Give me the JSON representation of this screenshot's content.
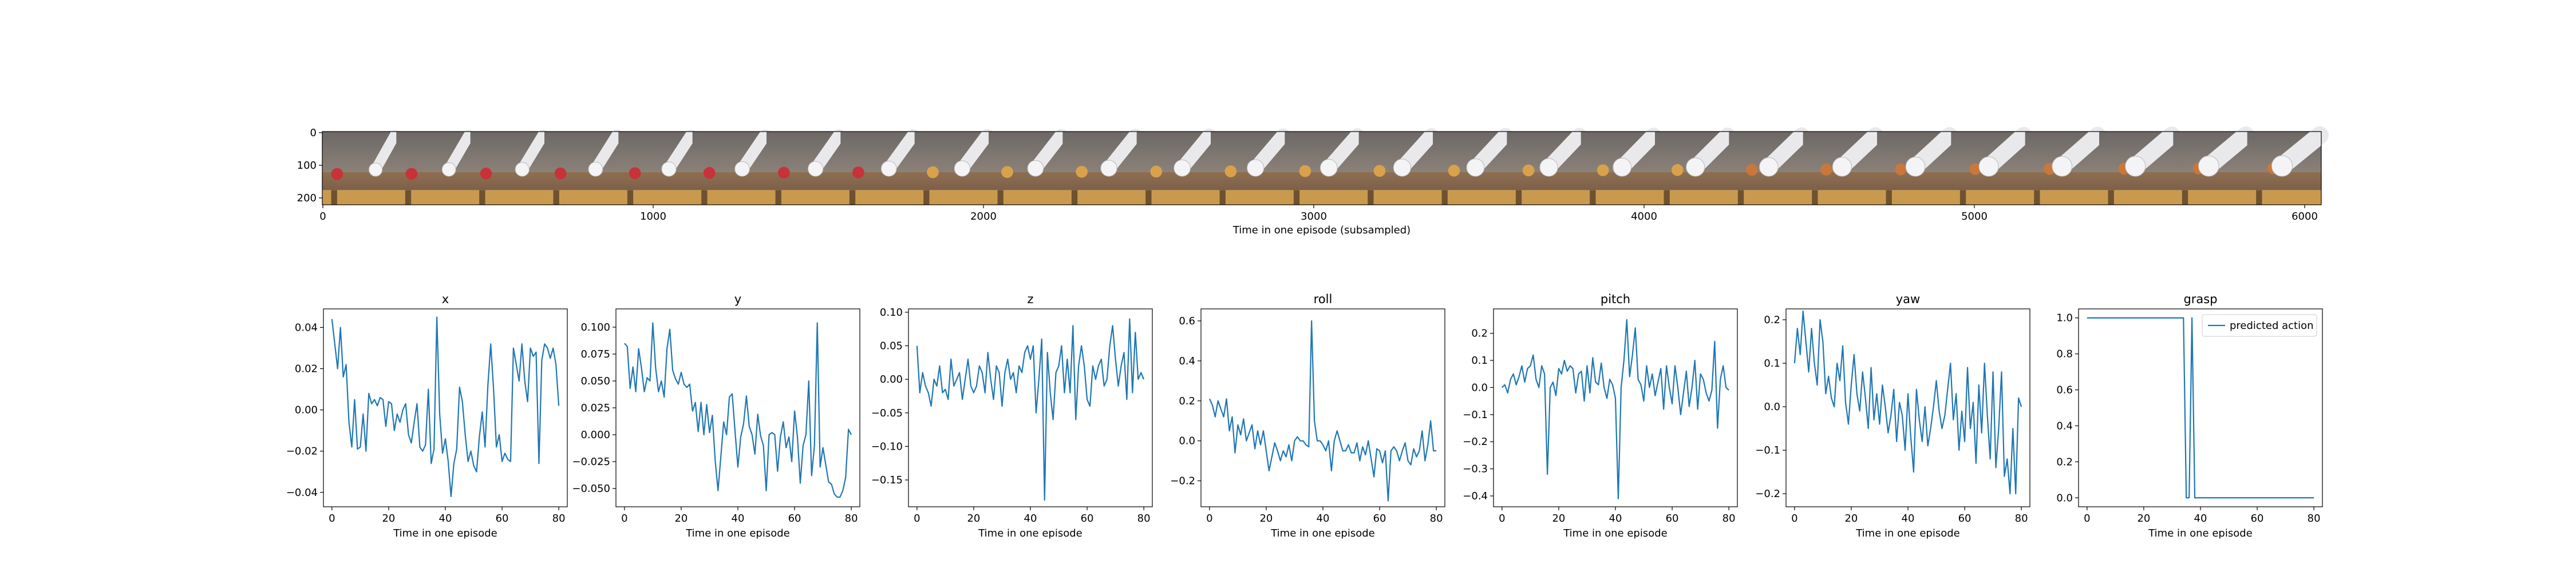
{
  "colors": {
    "line": "#1f77b4",
    "axis": "#000000",
    "legend_border": "#cccccc"
  },
  "strip": {
    "xlabel": "Time in one episode (subsampled)",
    "xticks": [
      "0",
      "1000",
      "2000",
      "3000",
      "4000",
      "5000",
      "6000"
    ],
    "yticks": [
      "0",
      "100",
      "200"
    ],
    "frame_count": 27
  },
  "chart_data": [
    {
      "type": "line",
      "title": "x",
      "xlabel": "Time in one episode",
      "ylabel": "",
      "xlim": [
        -3,
        83
      ],
      "ylim": [
        -0.047,
        0.049
      ],
      "xticks": [
        0,
        20,
        40,
        60,
        80
      ],
      "xtick_labels": [
        "0",
        "20",
        "40",
        "60",
        "80"
      ],
      "yticks": [
        -0.04,
        -0.02,
        0.0,
        0.02,
        0.04
      ],
      "ytick_labels": [
        "−0.04",
        "−0.02",
        "0.00",
        "0.02",
        "0.04"
      ],
      "series": [
        {
          "values": [
            0.044,
            0.032,
            0.02,
            0.04,
            0.016,
            0.022,
            -0.006,
            -0.018,
            0.005,
            -0.019,
            -0.018,
            -0.002,
            -0.02,
            0.008,
            0.003,
            0.005,
            0.002,
            0.006,
            0.005,
            -0.008,
            0.004,
            0.003,
            -0.01,
            -0.002,
            -0.006,
            0.0,
            0.003,
            -0.012,
            -0.016,
            -0.006,
            0.003,
            -0.018,
            -0.02,
            -0.017,
            0.01,
            -0.026,
            -0.019,
            0.045,
            -0.002,
            -0.021,
            -0.014,
            -0.025,
            -0.042,
            -0.026,
            -0.019,
            0.011,
            0.004,
            -0.012,
            -0.025,
            -0.02,
            -0.027,
            -0.03,
            -0.013,
            -0.001,
            -0.018,
            0.012,
            0.032,
            0.01,
            -0.018,
            -0.012,
            -0.025,
            -0.021,
            -0.024,
            -0.025,
            0.03,
            0.022,
            0.014,
            0.032,
            0.014,
            0.004,
            0.03,
            0.026,
            0.028,
            -0.026,
            0.024,
            0.032,
            0.03,
            0.025,
            0.03,
            0.022,
            0.002
          ]
        }
      ]
    },
    {
      "type": "line",
      "title": "y",
      "xlabel": "Time in one episode",
      "ylabel": "",
      "xlim": [
        -3,
        83
      ],
      "ylim": [
        -0.067,
        0.117
      ],
      "xticks": [
        0,
        20,
        40,
        60,
        80
      ],
      "xtick_labels": [
        "0",
        "20",
        "40",
        "60",
        "80"
      ],
      "yticks": [
        -0.05,
        -0.025,
        0.0,
        0.025,
        0.05,
        0.075,
        0.1
      ],
      "ytick_labels": [
        "−0.050",
        "−0.025",
        "0.000",
        "0.025",
        "0.050",
        "0.075",
        "0.100"
      ],
      "series": [
        {
          "values": [
            0.085,
            0.082,
            0.043,
            0.063,
            0.04,
            0.08,
            0.062,
            0.04,
            0.053,
            0.05,
            0.104,
            0.062,
            0.04,
            0.05,
            0.035,
            0.08,
            0.098,
            0.06,
            0.052,
            0.047,
            0.058,
            0.047,
            0.044,
            0.047,
            0.022,
            0.03,
            0.003,
            0.03,
            0.0,
            0.028,
            0.002,
            0.018,
            -0.024,
            -0.052,
            -0.02,
            0.012,
            0.0,
            0.035,
            0.038,
            0.003,
            -0.03,
            -0.002,
            0.01,
            0.036,
            0.008,
            0.0,
            -0.018,
            0.019,
            -0.001,
            -0.01,
            -0.052,
            0.0,
            0.002,
            0.0,
            -0.034,
            -0.002,
            0.012,
            -0.012,
            -0.002,
            -0.025,
            0.022,
            -0.002,
            -0.045,
            -0.01,
            0.0,
            0.05,
            -0.038,
            -0.01,
            0.104,
            -0.03,
            -0.012,
            -0.028,
            -0.044,
            -0.046,
            -0.055,
            -0.058,
            -0.058,
            -0.052,
            -0.04,
            0.005,
            0.0
          ]
        }
      ]
    },
    {
      "type": "line",
      "title": "z",
      "xlabel": "Time in one episode",
      "ylabel": "",
      "xlim": [
        -3,
        83
      ],
      "ylim": [
        -0.19,
        0.105
      ],
      "xticks": [
        0,
        20,
        40,
        60,
        80
      ],
      "xtick_labels": [
        "0",
        "20",
        "40",
        "60",
        "80"
      ],
      "yticks": [
        -0.15,
        -0.1,
        -0.05,
        0.0,
        0.05,
        0.1
      ],
      "ytick_labels": [
        "−0.15",
        "−0.10",
        "−0.05",
        "0.00",
        "0.05",
        "0.10"
      ],
      "series": [
        {
          "values": [
            0.05,
            -0.02,
            0.01,
            -0.01,
            -0.02,
            -0.04,
            0.0,
            -0.01,
            0.02,
            -0.02,
            -0.015,
            -0.03,
            0.03,
            -0.01,
            0.0,
            0.01,
            -0.03,
            0.0,
            0.03,
            -0.01,
            -0.02,
            -0.01,
            0.02,
            0.01,
            -0.02,
            0.04,
            0.0,
            -0.03,
            0.02,
            0.01,
            -0.04,
            0.01,
            0.03,
            0.0,
            0.01,
            -0.02,
            0.02,
            0.01,
            0.04,
            0.05,
            0.03,
            0.05,
            -0.05,
            0.0,
            0.06,
            -0.18,
            0.04,
            -0.02,
            -0.06,
            0.01,
            0.02,
            0.05,
            -0.02,
            0.03,
            -0.02,
            0.08,
            -0.06,
            0.02,
            0.05,
            0.02,
            -0.03,
            -0.04,
            0.02,
            0.0,
            0.02,
            0.03,
            -0.01,
            0.0,
            0.05,
            0.08,
            0.03,
            -0.01,
            0.02,
            0.04,
            -0.03,
            0.09,
            -0.02,
            0.07,
            0.0,
            0.01,
            0.0
          ]
        }
      ]
    },
    {
      "type": "line",
      "title": "roll",
      "xlabel": "Time in one episode",
      "ylabel": "",
      "xlim": [
        -3,
        83
      ],
      "ylim": [
        -0.33,
        0.66
      ],
      "xticks": [
        0,
        20,
        40,
        60,
        80
      ],
      "xtick_labels": [
        "0",
        "20",
        "40",
        "60",
        "80"
      ],
      "yticks": [
        -0.2,
        0.0,
        0.2,
        0.4,
        0.6
      ],
      "ytick_labels": [
        "−0.2",
        "0.0",
        "0.2",
        "0.4",
        "0.6"
      ],
      "series": [
        {
          "values": [
            0.21,
            0.18,
            0.12,
            0.2,
            0.16,
            0.12,
            0.21,
            0.05,
            0.12,
            -0.06,
            0.08,
            0.03,
            0.11,
            0.0,
            0.04,
            0.08,
            -0.04,
            0.05,
            -0.02,
            0.05,
            -0.05,
            -0.15,
            -0.08,
            -0.01,
            -0.05,
            -0.1,
            -0.05,
            -0.08,
            -0.02,
            -0.1,
            0.0,
            0.02,
            0.0,
            0.0,
            -0.02,
            -0.03,
            0.6,
            0.1,
            0.0,
            0.0,
            -0.02,
            -0.05,
            0.0,
            -0.15,
            0.0,
            0.05,
            0.0,
            -0.05,
            -0.05,
            -0.02,
            -0.06,
            -0.06,
            -0.01,
            -0.1,
            -0.03,
            -0.07,
            0.0,
            -0.09,
            -0.18,
            -0.04,
            -0.05,
            -0.11,
            -0.05,
            -0.3,
            -0.05,
            -0.03,
            -0.05,
            -0.1,
            -0.05,
            -0.01,
            -0.1,
            -0.12,
            -0.04,
            -0.08,
            -0.05,
            0.05,
            -0.1,
            -0.02,
            0.1,
            -0.05,
            -0.05
          ]
        }
      ]
    },
    {
      "type": "line",
      "title": "pitch",
      "xlabel": "Time in one episode",
      "ylabel": "",
      "xlim": [
        -3,
        83
      ],
      "ylim": [
        -0.44,
        0.29
      ],
      "xticks": [
        0,
        20,
        40,
        60,
        80
      ],
      "xtick_labels": [
        "0",
        "20",
        "40",
        "60",
        "80"
      ],
      "yticks": [
        -0.4,
        -0.3,
        -0.2,
        -0.1,
        0.0,
        0.1,
        0.2
      ],
      "ytick_labels": [
        "−0.4",
        "−0.3",
        "−0.2",
        "−0.1",
        "0.0",
        "0.1",
        "0.2"
      ],
      "series": [
        {
          "values": [
            0.0,
            0.01,
            -0.02,
            0.03,
            0.05,
            0.01,
            0.04,
            0.08,
            0.02,
            0.07,
            0.08,
            0.12,
            0.03,
            0.0,
            0.08,
            0.05,
            -0.32,
            0.0,
            0.02,
            -0.03,
            0.07,
            0.05,
            0.1,
            0.06,
            0.08,
            0.07,
            -0.02,
            0.05,
            0.06,
            -0.05,
            0.08,
            -0.02,
            0.11,
            0.02,
            0.01,
            0.09,
            0.0,
            -0.04,
            0.03,
            0.01,
            -0.04,
            -0.41,
            0.0,
            0.1,
            0.25,
            0.04,
            0.12,
            0.22,
            0.03,
            0.01,
            -0.05,
            0.08,
            0.0,
            0.05,
            -0.03,
            0.02,
            0.07,
            -0.08,
            0.08,
            0.0,
            -0.06,
            0.08,
            0.0,
            -0.1,
            -0.02,
            0.06,
            -0.07,
            0.0,
            0.1,
            -0.08,
            0.05,
            0.03,
            -0.02,
            -0.05,
            -0.01,
            0.17,
            -0.15,
            0.03,
            0.08,
            0.0,
            -0.01
          ]
        }
      ]
    },
    {
      "type": "line",
      "title": "yaw",
      "xlabel": "Time in one episode",
      "ylabel": "",
      "xlim": [
        -3,
        83
      ],
      "ylim": [
        -0.23,
        0.225
      ],
      "xticks": [
        0,
        20,
        40,
        60,
        80
      ],
      "xtick_labels": [
        "0",
        "20",
        "40",
        "60",
        "80"
      ],
      "yticks": [
        -0.2,
        -0.1,
        0.0,
        0.1,
        0.2
      ],
      "ytick_labels": [
        "−0.2",
        "−0.1",
        "0.0",
        "0.1",
        "0.2"
      ],
      "series": [
        {
          "values": [
            0.1,
            0.18,
            0.12,
            0.22,
            0.15,
            0.08,
            0.18,
            0.1,
            0.05,
            0.2,
            0.15,
            0.03,
            0.07,
            0.02,
            0.0,
            0.1,
            0.06,
            0.14,
            0.01,
            -0.04,
            0.05,
            0.12,
            0.03,
            -0.01,
            0.08,
            0.02,
            -0.05,
            0.09,
            -0.03,
            0.03,
            -0.04,
            0.05,
            0.0,
            -0.06,
            -0.02,
            0.04,
            -0.08,
            0.01,
            -0.02,
            -0.1,
            0.03,
            -0.07,
            -0.15,
            0.04,
            -0.03,
            -0.08,
            0.0,
            -0.09,
            -0.05,
            0.0,
            0.06,
            -0.01,
            -0.05,
            -0.02,
            0.04,
            0.1,
            -0.03,
            0.03,
            -0.1,
            -0.01,
            -0.08,
            0.09,
            -0.05,
            0.01,
            -0.13,
            0.05,
            -0.06,
            0.1,
            -0.02,
            -0.12,
            0.08,
            -0.14,
            -0.05,
            0.08,
            -0.16,
            -0.12,
            -0.2,
            -0.05,
            -0.2,
            0.02,
            0.0
          ]
        }
      ]
    },
    {
      "type": "line",
      "title": "grasp",
      "xlabel": "Time in one episode",
      "ylabel": "",
      "xlim": [
        -3,
        83
      ],
      "ylim": [
        -0.05,
        1.05
      ],
      "xticks": [
        0,
        20,
        40,
        60,
        80
      ],
      "xtick_labels": [
        "0",
        "20",
        "40",
        "60",
        "80"
      ],
      "yticks": [
        0.0,
        0.2,
        0.4,
        0.6,
        0.8,
        1.0
      ],
      "ytick_labels": [
        "0.0",
        "0.2",
        "0.4",
        "0.6",
        "0.8",
        "1.0"
      ],
      "legend": "top-right",
      "series": [
        {
          "name": "predicted action",
          "values": [
            1,
            1,
            1,
            1,
            1,
            1,
            1,
            1,
            1,
            1,
            1,
            1,
            1,
            1,
            1,
            1,
            1,
            1,
            1,
            1,
            1,
            1,
            1,
            1,
            1,
            1,
            1,
            1,
            1,
            1,
            1,
            1,
            1,
            1,
            1,
            0,
            0,
            1,
            0,
            0,
            0,
            0,
            0,
            0,
            0,
            0,
            0,
            0,
            0,
            0,
            0,
            0,
            0,
            0,
            0,
            0,
            0,
            0,
            0,
            0,
            0,
            0,
            0,
            0,
            0,
            0,
            0,
            0,
            0,
            0,
            0,
            0,
            0,
            0,
            0,
            0,
            0,
            0,
            0,
            0,
            0
          ]
        }
      ]
    }
  ]
}
